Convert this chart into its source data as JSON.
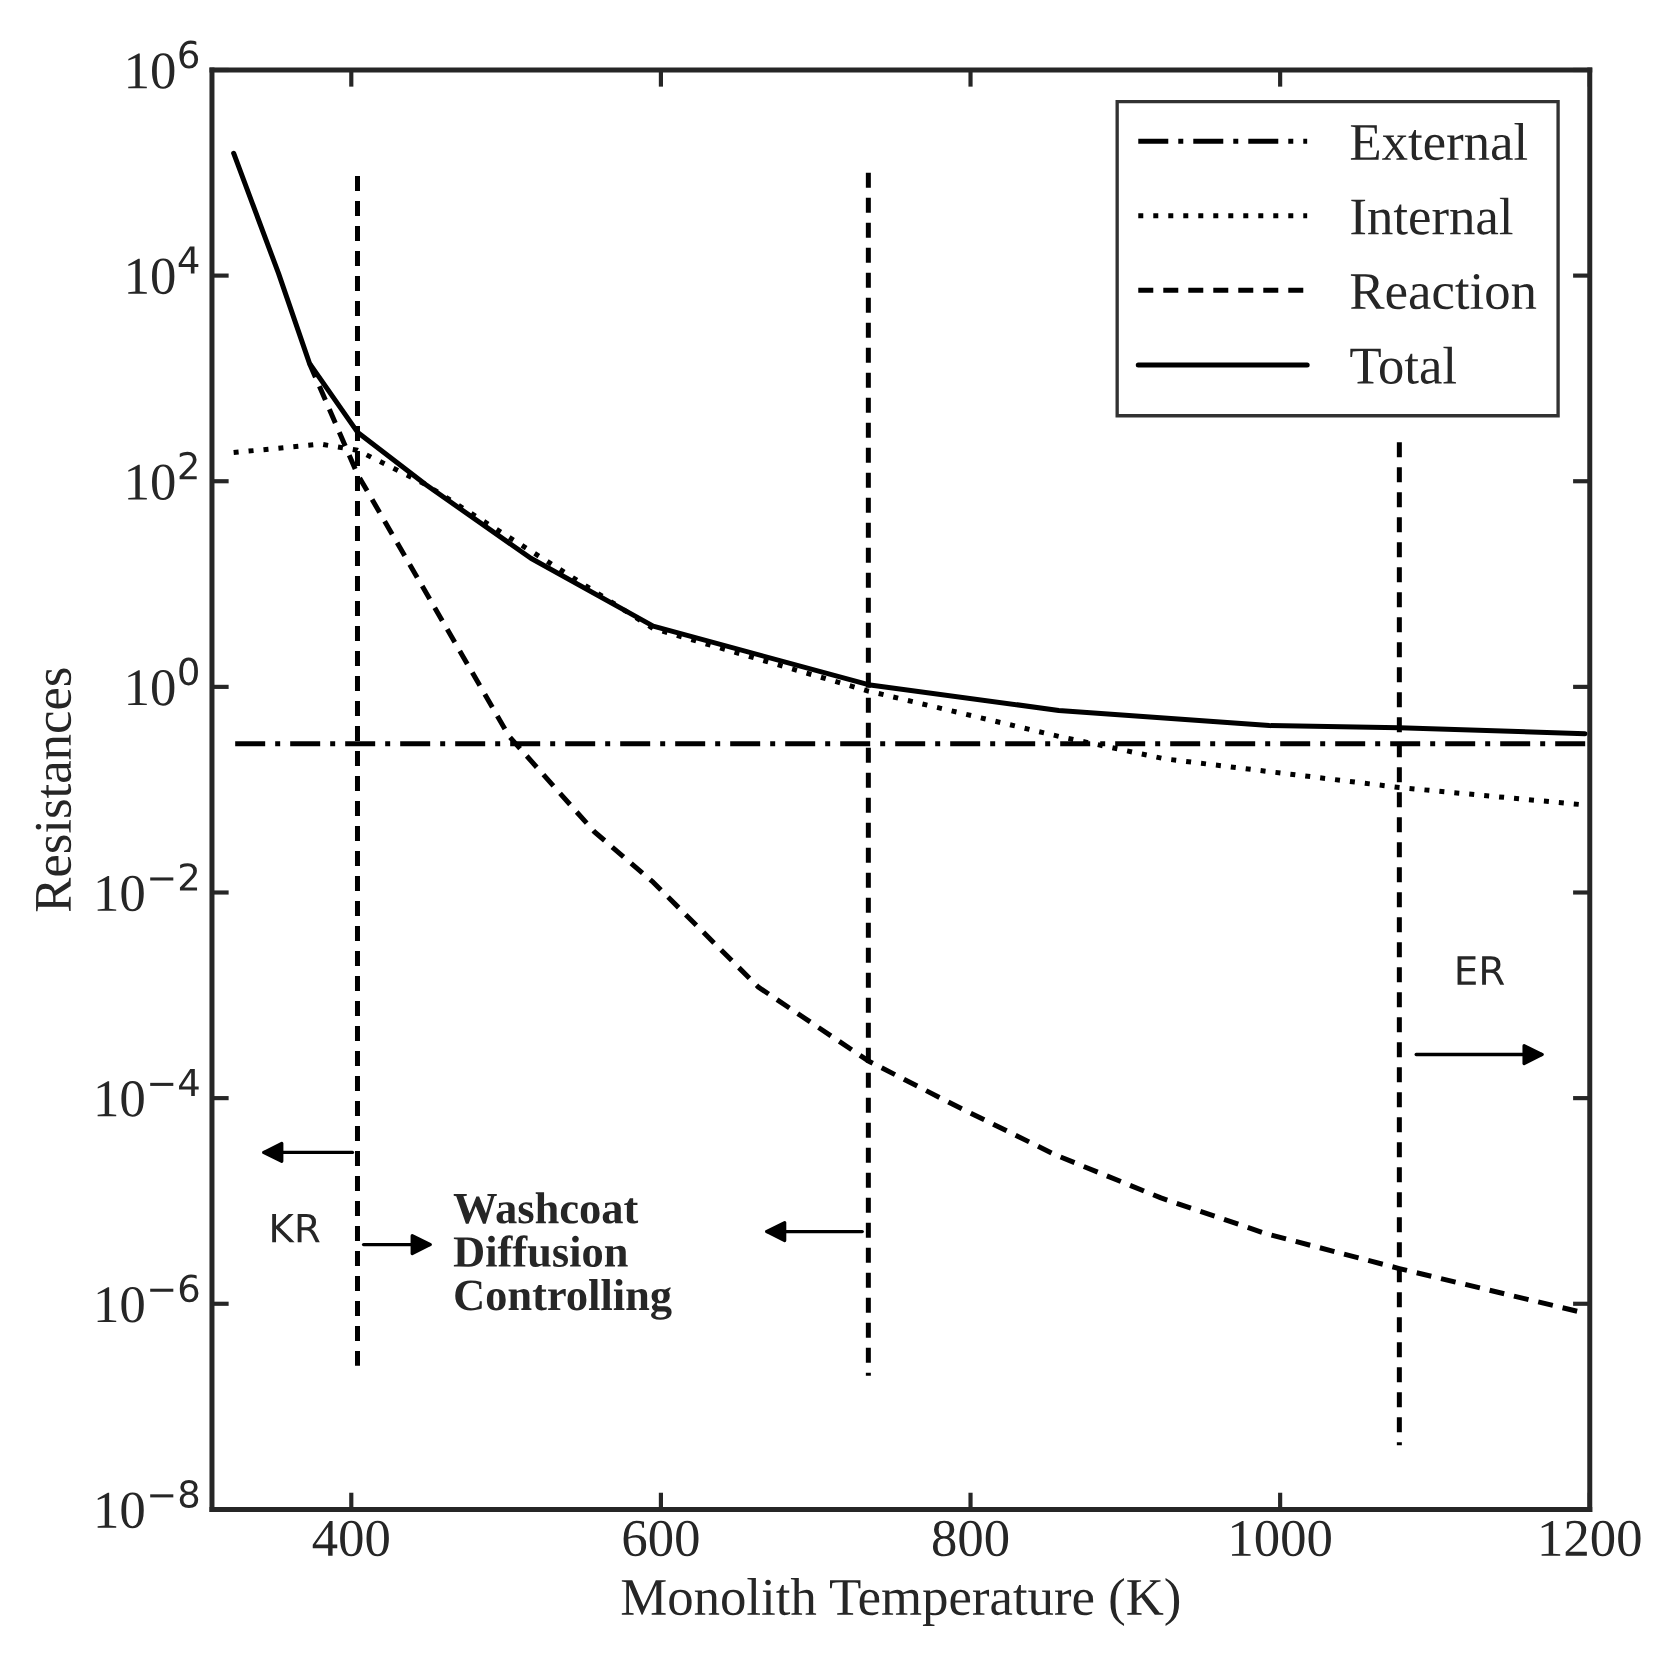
{
  "chart_data": {
    "type": "line",
    "xlabel": "Monolith Temperature (K)",
    "ylabel": "Resistances",
    "log": "y",
    "xlim": [
      310,
      1200
    ],
    "ylim": [
      1e-08,
      1000000.0
    ],
    "xticks": [
      400,
      600,
      800,
      1000,
      1200
    ],
    "yticks": [
      {
        "value": 1e-08,
        "label": "10$^{−8}$"
      },
      {
        "value": 1e-06,
        "label": "10$^{−6}$"
      },
      {
        "value": 0.0001,
        "label": "10$^{−4}$"
      },
      {
        "value": 0.01,
        "label": "10$^{−2}$"
      },
      {
        "value": 1,
        "label": "10$^{0}$"
      },
      {
        "value": 100,
        "label": "10$^{2}$"
      },
      {
        "value": 10000,
        "label": "10$^{4}$"
      },
      {
        "value": 1000000.0,
        "label": "10$^{6}$"
      }
    ],
    "grid": false,
    "legend": "top right",
    "series": [
      {
        "name": "External",
        "color": "#000000",
        "line_style": "dashdot",
        "x": [
          325,
          1200
        ],
        "values": [
          0.28,
          0.28
        ]
      },
      {
        "name": "Internal",
        "color": "#000000",
        "line_style": "dotted",
        "x": [
          324,
          380,
          404,
          448,
          595,
          734,
          857,
          925,
          1077,
          1197
        ],
        "values": [
          190,
          230,
          200,
          93,
          3.7,
          0.91,
          0.33,
          0.2,
          0.105,
          0.071
        ]
      },
      {
        "name": "Reaction",
        "color": "#000000",
        "line_style": "dashed",
        "x": [
          373,
          404,
          502,
          557,
          595,
          663,
          734,
          786,
          855,
          923,
          991,
          1077,
          1197
        ],
        "values": [
          1400,
          117,
          0.33,
          0.039,
          0.0126,
          0.0012,
          0.00023,
          9.1e-05,
          2.8e-05,
          1.07e-05,
          4.8e-06,
          2.2e-06,
          8.1e-07
        ]
      },
      {
        "name": "Total",
        "color": "#000000",
        "line_style": "solid",
        "x": [
          324,
          353,
          373,
          404,
          448,
          516,
          595,
          734,
          857,
          993,
          1077,
          1197
        ],
        "values": [
          155000,
          10500,
          1400,
          300,
          93,
          17.8,
          3.9,
          1.05,
          0.59,
          0.42,
          0.4,
          0.35
        ]
      },
      {
        "color": "#000000",
        "line_style": "dashed",
        "x": [
          404,
          404
        ],
        "values": [
          93000,
          2.5e-07
        ]
      },
      {
        "color": "#000000",
        "line_style": "dashed",
        "x": [
          734,
          734
        ],
        "values": [
          100000,
          2e-07
        ]
      },
      {
        "color": "#000000",
        "line_style": "dashed",
        "x": [
          1077,
          1077
        ],
        "values": [
          240,
          4.2e-08
        ]
      }
    ],
    "annotations": [
      "KR",
      "Washcoat\nDiffusion\nControlling",
      "ER"
    ]
  }
}
